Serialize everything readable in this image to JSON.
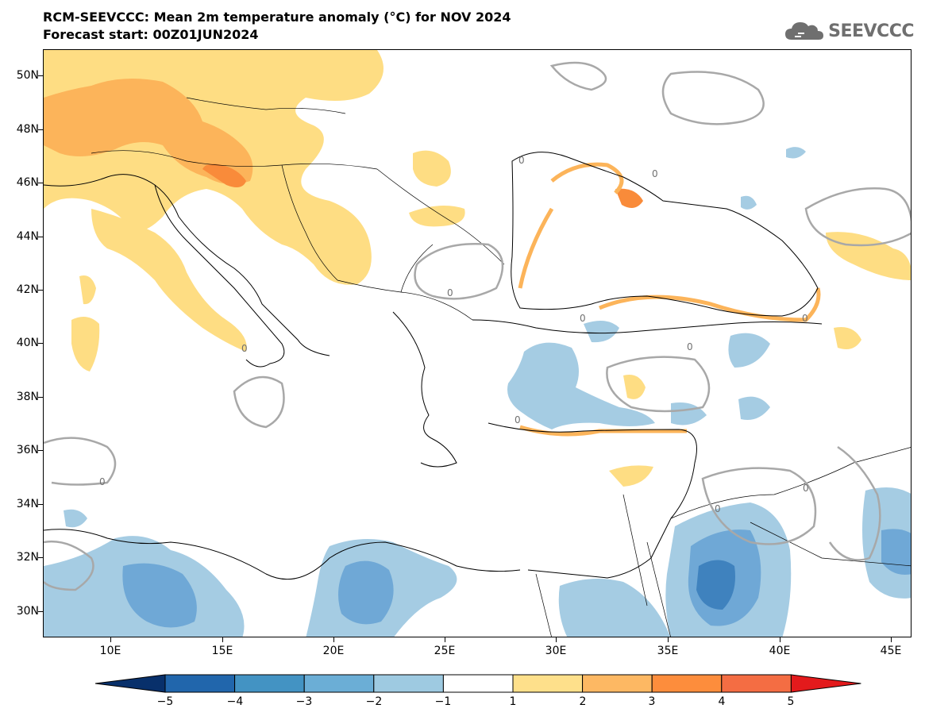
{
  "title": "RCM-SEEVCCC: Mean 2m temperature anomaly (°C) for NOV 2024",
  "subtitle": "Forecast start: 00Z01JUN2024",
  "logo": {
    "text": "SEEVCCC",
    "icon": "cloud-icon"
  },
  "map": {
    "lat_labels": [
      "50N",
      "48N",
      "46N",
      "44N",
      "42N",
      "40N",
      "38N",
      "36N",
      "34N",
      "32N",
      "30N"
    ],
    "lon_labels": [
      "10E",
      "15E",
      "20E",
      "25E",
      "30E",
      "35E",
      "40E",
      "45E"
    ],
    "contour_label": "0"
  },
  "colorbar": {
    "labels": [
      "−5",
      "−4",
      "−3",
      "−2",
      "−1",
      "1",
      "2",
      "3",
      "4",
      "5"
    ],
    "colors": [
      "#08306b",
      "#2166ac",
      "#4393c3",
      "#6baed6",
      "#9ecae1",
      "#ffffff",
      "#fee08b",
      "#fdb863",
      "#fd8d3c",
      "#f46d43",
      "#e31a1c"
    ]
  },
  "colors": {
    "warm1": "#fedd83",
    "warm2": "#fcb45a",
    "warm3": "#f98b3a",
    "cold1": "#a5cce3",
    "cold2": "#6fa8d6",
    "cold3": "#3f82be",
    "contour": "#a8a8a8",
    "border": "#000000"
  }
}
